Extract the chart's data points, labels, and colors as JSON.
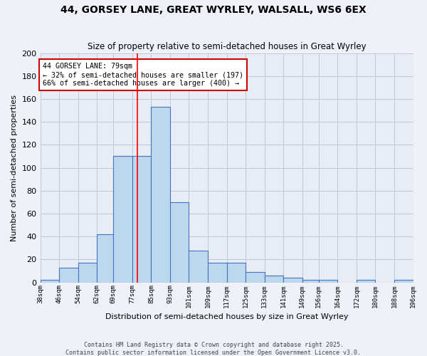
{
  "title": "44, GORSEY LANE, GREAT WYRLEY, WALSALL, WS6 6EX",
  "subtitle": "Size of property relative to semi-detached houses in Great Wyrley",
  "xlabel": "Distribution of semi-detached houses by size in Great Wyrley",
  "ylabel": "Number of semi-detached properties",
  "footnote": "Contains HM Land Registry data © Crown copyright and database right 2025.\nContains public sector information licensed under the Open Government Licence v3.0.",
  "bar_edges": [
    38,
    46,
    54,
    62,
    69,
    77,
    85,
    93,
    101,
    109,
    117,
    125,
    133,
    141,
    149,
    156,
    164,
    172,
    180,
    188,
    196
  ],
  "bar_heights": [
    2,
    13,
    17,
    42,
    110,
    110,
    153,
    70,
    28,
    17,
    17,
    9,
    6,
    4,
    2,
    2,
    0,
    2,
    0,
    2
  ],
  "bar_color": "#bdd7ee",
  "bar_edgecolor": "#4472c4",
  "grid_color": "#c0c8d8",
  "bg_color": "#e8edf5",
  "fig_color": "#eef1f8",
  "red_line_x": 79,
  "annotation_text": "44 GORSEY LANE: 79sqm\n← 32% of semi-detached houses are smaller (197)\n66% of semi-detached houses are larger (400) →",
  "annotation_box_color": "#ffffff",
  "annotation_edge_color": "#cc0000",
  "ylim": [
    0,
    200
  ],
  "yticks": [
    0,
    20,
    40,
    60,
    80,
    100,
    120,
    140,
    160,
    180,
    200
  ],
  "tick_labels": [
    "38sqm",
    "46sqm",
    "54sqm",
    "62sqm",
    "69sqm",
    "77sqm",
    "85sqm",
    "93sqm",
    "101sqm",
    "109sqm",
    "117sqm",
    "125sqm",
    "133sqm",
    "141sqm",
    "149sqm",
    "156sqm",
    "164sqm",
    "172sqm",
    "180sqm",
    "188sqm",
    "196sqm"
  ]
}
